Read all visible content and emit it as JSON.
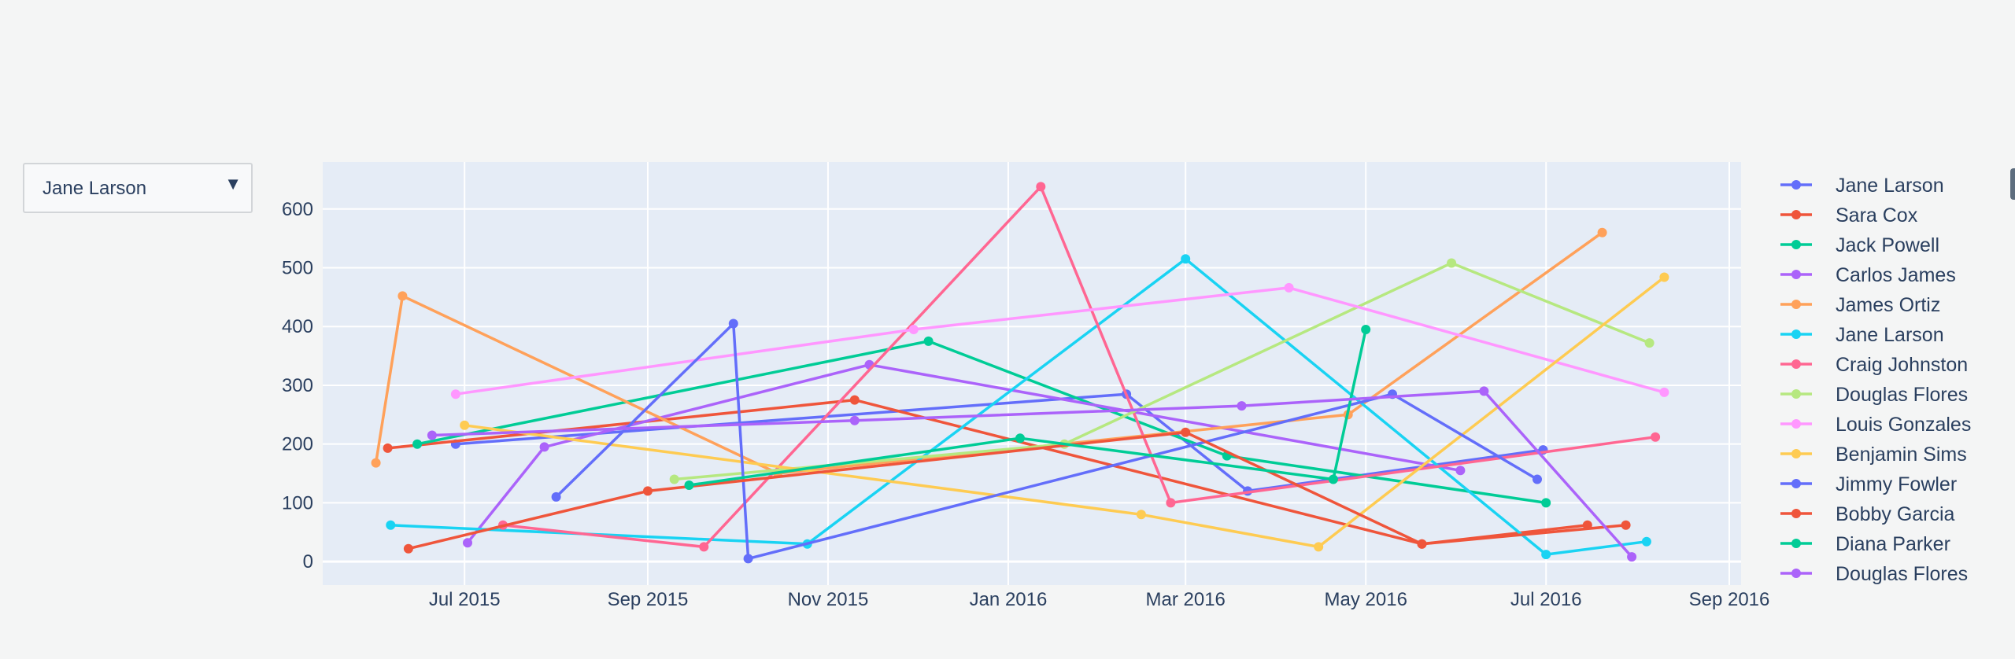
{
  "dropdown": {
    "selected": "Jane Larson",
    "arrow_icon": "triangle-down-icon"
  },
  "chart_data": {
    "type": "line",
    "title": "",
    "xlabel": "",
    "ylabel": "",
    "xlim": [
      "2015-05-14",
      "2016-09-05"
    ],
    "ylim": [
      -40,
      680
    ],
    "x_ticks": [
      "Jul 2015",
      "Sep 2015",
      "Nov 2015",
      "Jan 2016",
      "Mar 2016",
      "May 2016",
      "Jul 2016",
      "Sep 2016"
    ],
    "x_tick_dates": [
      "2015-07-01",
      "2015-09-01",
      "2015-11-01",
      "2016-01-01",
      "2016-03-01",
      "2016-05-01",
      "2016-07-01",
      "2016-09-01"
    ],
    "y_ticks": [
      0,
      100,
      200,
      300,
      400,
      500,
      600
    ],
    "grid": true,
    "plot_bgcolor": "#e5ecf6",
    "legend_position": "right",
    "series": [
      {
        "name": "Jane Larson",
        "color": "#636efa",
        "x": [
          "2015-06-28",
          "2016-02-10",
          "2016-03-22",
          "2016-06-30"
        ],
        "y": [
          200,
          285,
          120,
          190
        ]
      },
      {
        "name": "Sara Cox",
        "color": "#ef553b",
        "x": [
          "2015-06-05",
          "2015-11-10",
          "2016-05-20",
          "2016-07-15"
        ],
        "y": [
          193,
          275,
          30,
          62
        ]
      },
      {
        "name": "Jack Powell",
        "color": "#00cc96",
        "x": [
          "2015-06-15",
          "2015-12-05",
          "2016-03-15",
          "2016-07-01"
        ],
        "y": [
          200,
          375,
          180,
          100
        ]
      },
      {
        "name": "Carlos James",
        "color": "#ab63fa",
        "x": [
          "2015-07-02",
          "2015-07-28",
          "2015-11-15",
          "2016-06-02"
        ],
        "y": [
          32,
          195,
          335,
          155
        ]
      },
      {
        "name": "James Ortiz",
        "color": "#ffa15a",
        "x": [
          "2015-06-01",
          "2015-06-10",
          "2015-10-15",
          "2016-04-25",
          "2016-07-20"
        ],
        "y": [
          168,
          452,
          150,
          250,
          560
        ]
      },
      {
        "name": "Jane Larson",
        "color": "#19d3f3",
        "x": [
          "2015-06-06",
          "2015-10-25",
          "2016-03-01",
          "2016-07-01",
          "2016-08-04"
        ],
        "y": [
          62,
          30,
          515,
          12,
          34
        ]
      },
      {
        "name": "Craig Johnston",
        "color": "#ff6692",
        "x": [
          "2015-07-14",
          "2015-09-20",
          "2016-01-12",
          "2016-02-25",
          "2016-08-07"
        ],
        "y": [
          62,
          25,
          638,
          100,
          212
        ]
      },
      {
        "name": "Douglas Flores",
        "color": "#b6e880",
        "x": [
          "2015-09-10",
          "2016-01-20",
          "2016-05-30",
          "2016-08-05"
        ],
        "y": [
          140,
          200,
          508,
          372
        ]
      },
      {
        "name": "Louis Gonzales",
        "color": "#ff97ff",
        "x": [
          "2015-06-28",
          "2015-11-30",
          "2016-04-05",
          "2016-08-10"
        ],
        "y": [
          285,
          395,
          466,
          288
        ]
      },
      {
        "name": "Benjamin Sims",
        "color": "#fecb52",
        "x": [
          "2015-07-01",
          "2016-02-15",
          "2016-04-15",
          "2016-08-10"
        ],
        "y": [
          232,
          80,
          25,
          484
        ]
      },
      {
        "name": "Jimmy Fowler",
        "color": "#636efa",
        "x": [
          "2015-08-01",
          "2015-09-30",
          "2015-10-05",
          "2016-05-10",
          "2016-06-28"
        ],
        "y": [
          110,
          405,
          5,
          285,
          140
        ]
      },
      {
        "name": "Bobby Garcia",
        "color": "#ef553b",
        "x": [
          "2015-06-12",
          "2015-09-01",
          "2016-03-01",
          "2016-05-20",
          "2016-07-28"
        ],
        "y": [
          22,
          120,
          220,
          30,
          62
        ]
      },
      {
        "name": "Diana Parker",
        "color": "#00cc96",
        "x": [
          "2015-09-15",
          "2016-01-05",
          "2016-04-20",
          "2016-05-01"
        ],
        "y": [
          130,
          210,
          140,
          395
        ]
      },
      {
        "name": "Douglas Flores",
        "color": "#ab63fa",
        "x": [
          "2015-06-20",
          "2015-11-10",
          "2016-03-20",
          "2016-06-10",
          "2016-07-30"
        ],
        "y": [
          215,
          240,
          265,
          290,
          8
        ]
      }
    ]
  }
}
